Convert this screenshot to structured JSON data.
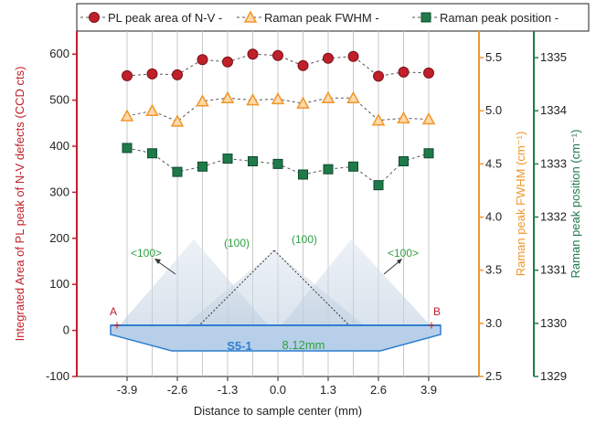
{
  "chart_data": {
    "type": "line",
    "xlabel": "Distance to sample center (mm)",
    "x_ticks": [
      -3.9,
      -2.6,
      -1.3,
      0.0,
      1.3,
      2.6,
      3.9
    ],
    "x_tick_labels": [
      "-3.9",
      "-2.6",
      "-1.3",
      "0.0",
      "1.3",
      "2.6",
      "3.9"
    ],
    "xlim": [
      -5.2,
      5.2
    ],
    "x": [
      -3.9,
      -3.25,
      -2.6,
      -1.95,
      -1.3,
      -0.65,
      0.0,
      0.65,
      1.3,
      1.95,
      2.6,
      3.25,
      3.9
    ],
    "axes": {
      "left": {
        "label": "Integrated Area of PL peak of N-V defects  (CCD cts)",
        "ylim": [
          -100,
          650
        ],
        "ticks": [
          -100,
          0,
          100,
          200,
          300,
          400,
          500,
          600
        ],
        "color": "#c0202a"
      },
      "right1": {
        "label": "Raman peak FWHM (cm⁻¹)",
        "ylim": [
          2.5,
          5.75
        ],
        "ticks": [
          2.5,
          3.0,
          3.5,
          4.0,
          4.5,
          5.0,
          5.5
        ],
        "tick_labels": [
          "2.5",
          "3.0",
          "3.5",
          "4.0",
          "4.5",
          "5.0",
          "5.5"
        ],
        "color": "#f0962a"
      },
      "right2": {
        "label": "Raman peak position (cm⁻¹)",
        "ylim": [
          1329,
          1335.5
        ],
        "ticks": [
          1329,
          1330,
          1331,
          1332,
          1333,
          1334,
          1335
        ],
        "color": "#1f7a4a"
      }
    },
    "series": [
      {
        "name": "PL peak area of N-V",
        "axis": "left",
        "marker": "circle",
        "color": "#c0202a",
        "values": [
          553,
          557,
          555,
          588,
          583,
          600,
          597,
          575,
          591,
          595,
          552,
          561,
          559
        ]
      },
      {
        "name": "Raman peak FWHM",
        "axis": "right1",
        "marker": "triangle",
        "color": "#f0962a",
        "values": [
          4.95,
          5.0,
          4.9,
          5.09,
          5.12,
          5.1,
          5.11,
          5.07,
          5.12,
          5.12,
          4.91,
          4.93,
          4.92
        ]
      },
      {
        "name": "Raman peak position",
        "axis": "right2",
        "marker": "square",
        "color": "#1f7a4a",
        "values": [
          1333.3,
          1333.2,
          1332.85,
          1332.95,
          1333.1,
          1333.05,
          1333.0,
          1332.8,
          1332.9,
          1332.95,
          1332.6,
          1333.05,
          1333.2
        ]
      }
    ],
    "legend": {
      "placement": "top",
      "entries": [
        "PL peak area of N-V",
        "Raman peak FWHM",
        "Raman peak position"
      ]
    },
    "grid": "vertical",
    "annotations": {
      "face_left": "<100>",
      "face_center": "(100)",
      "face_center2": "(100)",
      "face_right": "<100>",
      "point_a": "A",
      "point_b": "B",
      "sample_name": "S5-1",
      "sample_width": "8.12mm"
    }
  }
}
